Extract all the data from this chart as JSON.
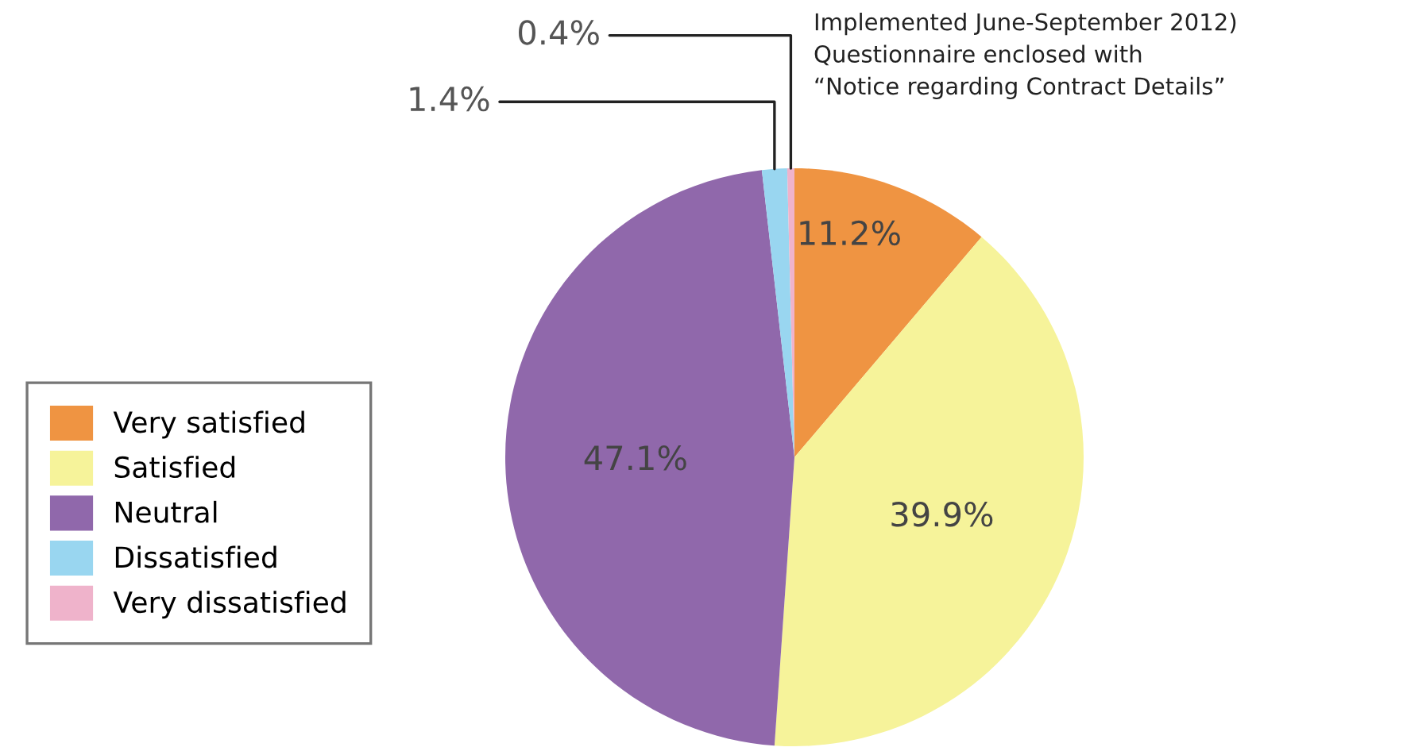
{
  "chart_data": {
    "type": "pie",
    "categories": [
      "Very satisfied",
      "Satisfied",
      "Neutral",
      "Dissatisfied",
      "Very dissatisfied"
    ],
    "values": [
      11.2,
      39.9,
      47.1,
      1.4,
      0.4
    ],
    "colors": [
      "#ef9442",
      "#f6f39a",
      "#9068ab",
      "#99d6f0",
      "#efb3cb"
    ],
    "value_labels": [
      "11.2%",
      "39.9%",
      "47.1%",
      "1.4%",
      "0.4%"
    ],
    "legend": "bottom left",
    "annotations": [
      "Implemented June-September 2012)\nQuestionnaire enclosed with\n“Notice regarding Contract Details”"
    ]
  }
}
